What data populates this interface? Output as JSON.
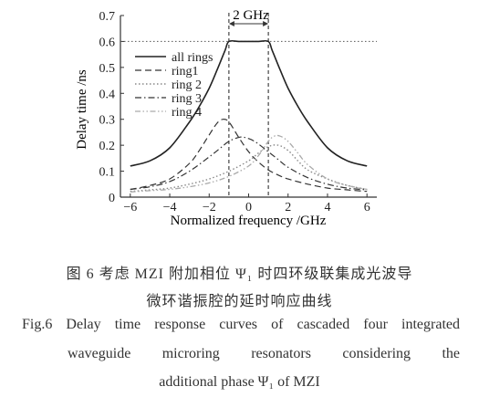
{
  "chart_data": {
    "type": "line",
    "xlabel": "Normalized frequency /GHz",
    "ylabel": "Delay time /ns",
    "xlim": [
      -6.5,
      6.5
    ],
    "ylim": [
      0,
      0.7
    ],
    "xticks": [
      -6,
      -4,
      -2,
      0,
      2,
      4,
      6
    ],
    "xtick_labels": [
      "−6",
      "−4",
      "−2",
      "0",
      "2",
      "4",
      "6"
    ],
    "yticks": [
      0,
      0.1,
      0.2,
      0.3,
      0.4,
      0.5,
      0.6,
      0.7
    ],
    "ytick_labels": [
      "0",
      "0.1",
      "0.2",
      "0.3",
      "0.4",
      "0.5",
      "0.6",
      "0.7"
    ],
    "grid": false,
    "legend_position": "top-left",
    "reference_line_y": 0.6,
    "markers_x": [
      -1,
      1
    ],
    "annotation": "2 GHz",
    "series": [
      {
        "name": "all rings",
        "style": "solid",
        "color": "#222222",
        "x": [
          -6,
          -5,
          -4,
          -3,
          -2.5,
          -2,
          -1.6,
          -1.2,
          -1,
          -0.5,
          0,
          0.5,
          1,
          1.2,
          1.6,
          2,
          2.5,
          3,
          4,
          5,
          6
        ],
        "values": [
          0.12,
          0.14,
          0.19,
          0.29,
          0.35,
          0.42,
          0.49,
          0.565,
          0.6,
          0.6,
          0.6,
          0.6,
          0.6,
          0.565,
          0.49,
          0.42,
          0.35,
          0.29,
          0.19,
          0.14,
          0.12
        ]
      },
      {
        "name": "ring1",
        "style": "dash",
        "color": "#333333",
        "x": [
          -6,
          -5,
          -4,
          -3,
          -2.5,
          -2,
          -1.6,
          -1.3,
          -1,
          -0.5,
          0,
          0.5,
          1,
          1.5,
          2,
          3,
          4,
          5,
          6
        ],
        "values": [
          0.03,
          0.045,
          0.07,
          0.13,
          0.18,
          0.24,
          0.285,
          0.3,
          0.29,
          0.23,
          0.175,
          0.135,
          0.105,
          0.085,
          0.07,
          0.05,
          0.035,
          0.028,
          0.022
        ]
      },
      {
        "name": "ring 2",
        "style": "dot",
        "color": "#888888",
        "x": [
          -6,
          -5,
          -4,
          -3,
          -2,
          -1,
          0,
          0.5,
          1,
          1.5,
          2,
          2.5,
          3,
          4,
          5,
          6
        ],
        "values": [
          0.022,
          0.028,
          0.035,
          0.05,
          0.07,
          0.1,
          0.14,
          0.17,
          0.195,
          0.2,
          0.18,
          0.14,
          0.105,
          0.07,
          0.045,
          0.03
        ]
      },
      {
        "name": "ring 3",
        "style": "dashdot",
        "color": "#333333",
        "x": [
          -6,
          -5,
          -4,
          -3,
          -2,
          -1.5,
          -1,
          -0.5,
          -0.2,
          0.3,
          1,
          1.5,
          2,
          3,
          4,
          5,
          6
        ],
        "values": [
          0.03,
          0.04,
          0.06,
          0.1,
          0.155,
          0.185,
          0.215,
          0.23,
          0.23,
          0.215,
          0.175,
          0.145,
          0.115,
          0.075,
          0.05,
          0.035,
          0.028
        ]
      },
      {
        "name": "ring 4",
        "style": "dashdotdot",
        "color": "#aaaaaa",
        "x": [
          -6,
          -5,
          -4,
          -3,
          -2,
          -1,
          0,
          0.5,
          1,
          1.3,
          1.6,
          2,
          2.5,
          3,
          4,
          5,
          6
        ],
        "values": [
          0.02,
          0.025,
          0.03,
          0.04,
          0.055,
          0.08,
          0.12,
          0.16,
          0.215,
          0.235,
          0.235,
          0.215,
          0.17,
          0.125,
          0.07,
          0.045,
          0.03
        ]
      }
    ]
  },
  "caption": {
    "cn_line1": "图 6  考虑 MZI 附加相位 Ψ₁ 时四环级联集成光波导",
    "cn_line2": "微环谐振腔的延时响应曲线",
    "en_label": "Fig.6",
    "en_line1": "Delay time response curves of cascaded four integrated",
    "en_line2": "waveguide microring resonators considering the",
    "en_line3": "additional phase Ψ₁ of MZI"
  }
}
